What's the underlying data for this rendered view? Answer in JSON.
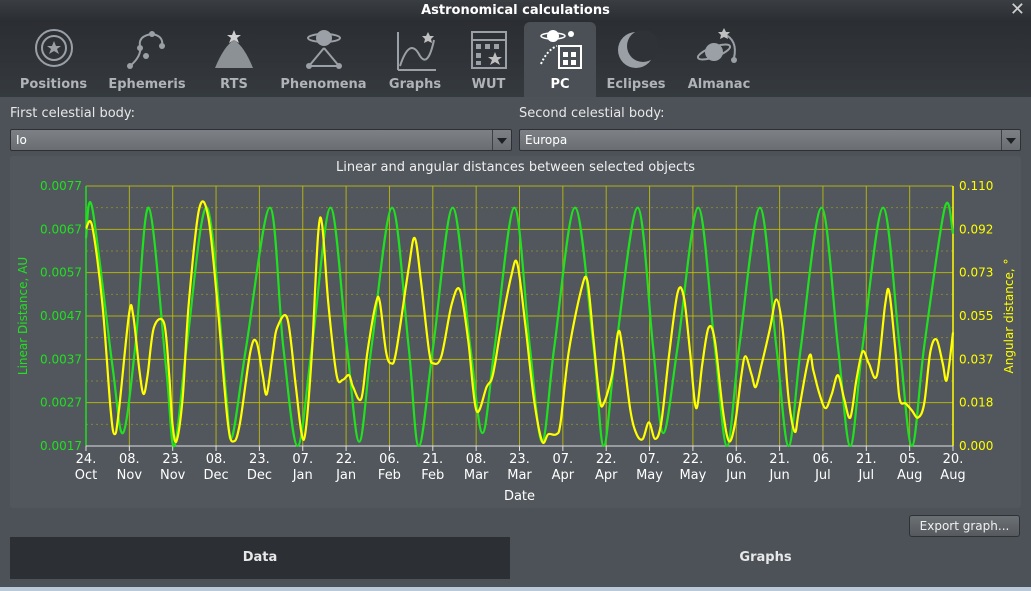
{
  "window": {
    "title": "Astronomical calculations",
    "close_glyph": "✕"
  },
  "tabs": [
    {
      "label": "Positions",
      "icon": "positions-icon"
    },
    {
      "label": "Ephemeris",
      "icon": "ephemeris-icon"
    },
    {
      "label": "RTS",
      "icon": "rts-icon"
    },
    {
      "label": "Phenomena",
      "icon": "phenomena-icon"
    },
    {
      "label": "Graphs",
      "icon": "graphs-icon"
    },
    {
      "label": "WUT",
      "icon": "wut-icon"
    },
    {
      "label": "PC",
      "icon": "pc-icon",
      "active": true
    },
    {
      "label": "Eclipses",
      "icon": "eclipses-icon"
    },
    {
      "label": "Almanac",
      "icon": "almanac-icon"
    }
  ],
  "form": {
    "first_label": "First celestial body:",
    "first_value": "Io",
    "second_label": "Second celestial body:",
    "second_value": "Europa"
  },
  "colors": {
    "linear": "#20e020",
    "angular": "#ffff00",
    "grid": "#c8c800",
    "grid_minor": "#8a8a30",
    "panel": "#52575d"
  },
  "chart_data": {
    "type": "line",
    "title": "Linear and angular distances between selected objects",
    "xlabel": "Date",
    "ylabel_left": "Linear Distance, AU",
    "ylabel_right": "Angular distance, °",
    "yticks_left": [
      "0.0017",
      "0.0027",
      "0.0037",
      "0.0047",
      "0.0057",
      "0.0067",
      "0.0077"
    ],
    "yticks_right": [
      "0.000",
      "0.018",
      "0.037",
      "0.055",
      "0.073",
      "0.092",
      "0.110"
    ],
    "ylim_left": [
      0.0017,
      0.0077
    ],
    "ylim_right": [
      0.0,
      0.11
    ],
    "xticks": [
      [
        "24.",
        "Oct"
      ],
      [
        "08.",
        "Nov"
      ],
      [
        "23.",
        "Nov"
      ],
      [
        "08.",
        "Dec"
      ],
      [
        "23.",
        "Dec"
      ],
      [
        "07.",
        "Jan"
      ],
      [
        "22.",
        "Jan"
      ],
      [
        "06.",
        "Feb"
      ],
      [
        "21.",
        "Feb"
      ],
      [
        "08.",
        "Mar"
      ],
      [
        "23.",
        "Mar"
      ],
      [
        "07.",
        "Apr"
      ],
      [
        "22.",
        "Apr"
      ],
      [
        "07.",
        "May"
      ],
      [
        "22.",
        "May"
      ],
      [
        "06.",
        "Jun"
      ],
      [
        "21.",
        "Jun"
      ],
      [
        "06.",
        "Jul"
      ],
      [
        "21.",
        "Jul"
      ],
      [
        "05.",
        "Aug"
      ],
      [
        "20.",
        "Aug"
      ]
    ],
    "grid": true,
    "series": [
      {
        "name": "Linear Distance, AU",
        "axis": "left",
        "points": [
          [
            0,
            0.0065
          ],
          [
            0.3,
            0.0072
          ],
          [
            1.3,
            0.0035
          ],
          [
            1.8,
            0.002
          ],
          [
            2.4,
            0.004
          ],
          [
            3.05,
            0.0072
          ],
          [
            3.9,
            0.0035
          ],
          [
            4.3,
            0.0017
          ],
          [
            4.9,
            0.004
          ],
          [
            5.9,
            0.0072
          ],
          [
            6.8,
            0.003
          ],
          [
            7.1,
            0.0019
          ],
          [
            7.8,
            0.004
          ],
          [
            8.95,
            0.0072
          ],
          [
            9.6,
            0.004
          ],
          [
            10.3,
            0.0017
          ],
          [
            11.0,
            0.004
          ],
          [
            11.9,
            0.0072
          ],
          [
            12.7,
            0.004
          ],
          [
            13.3,
            0.0018
          ],
          [
            13.9,
            0.004
          ],
          [
            14.9,
            0.0072
          ],
          [
            15.7,
            0.004
          ],
          [
            16.2,
            0.0017
          ],
          [
            16.9,
            0.004
          ],
          [
            17.85,
            0.0072
          ],
          [
            18.7,
            0.004
          ],
          [
            19.3,
            0.002
          ],
          [
            19.9,
            0.004
          ],
          [
            20.85,
            0.0072
          ],
          [
            21.6,
            0.004
          ],
          [
            22.2,
            0.0018
          ],
          [
            22.8,
            0.004
          ],
          [
            23.8,
            0.0072
          ],
          [
            24.7,
            0.004
          ],
          [
            25.2,
            0.0017
          ],
          [
            25.8,
            0.004
          ],
          [
            26.85,
            0.0072
          ],
          [
            27.6,
            0.004
          ],
          [
            28.1,
            0.002
          ],
          [
            28.8,
            0.004
          ],
          [
            29.8,
            0.0072
          ],
          [
            30.6,
            0.004
          ],
          [
            31.2,
            0.0017
          ],
          [
            31.8,
            0.004
          ],
          [
            32.8,
            0.0072
          ],
          [
            33.6,
            0.004
          ],
          [
            34.2,
            0.0017
          ],
          [
            34.8,
            0.004
          ],
          [
            35.8,
            0.0072
          ],
          [
            36.6,
            0.004
          ],
          [
            37.2,
            0.0017
          ],
          [
            37.8,
            0.004
          ],
          [
            38.8,
            0.0072
          ],
          [
            39.6,
            0.004
          ],
          [
            40.2,
            0.0017
          ],
          [
            40.8,
            0.004
          ],
          [
            41.8,
            0.0072
          ],
          [
            42.2,
            0.0066
          ]
        ]
      },
      {
        "name": "Angular distance, °",
        "axis": "right",
        "points": [
          [
            0,
            0.092
          ],
          [
            0.3,
            0.093
          ],
          [
            0.8,
            0.06
          ],
          [
            1.2,
            0.015
          ],
          [
            1.4,
            0.005
          ],
          [
            1.6,
            0.015
          ],
          [
            2.1,
            0.056
          ],
          [
            2.3,
            0.055
          ],
          [
            2.6,
            0.032
          ],
          [
            2.8,
            0.022
          ],
          [
            3.0,
            0.03
          ],
          [
            3.3,
            0.05
          ],
          [
            3.8,
            0.052
          ],
          [
            4.05,
            0.03
          ],
          [
            4.2,
            0.01
          ],
          [
            4.4,
            0.002
          ],
          [
            4.7,
            0.02
          ],
          [
            5.0,
            0.06
          ],
          [
            5.5,
            0.1
          ],
          [
            5.95,
            0.097
          ],
          [
            6.4,
            0.06
          ],
          [
            6.9,
            0.01
          ],
          [
            7.2,
            0.002
          ],
          [
            7.5,
            0.01
          ],
          [
            8.0,
            0.04
          ],
          [
            8.3,
            0.044
          ],
          [
            8.6,
            0.03
          ],
          [
            8.8,
            0.022
          ],
          [
            9.1,
            0.04
          ],
          [
            9.3,
            0.05
          ],
          [
            9.8,
            0.054
          ],
          [
            10.2,
            0.026
          ],
          [
            10.5,
            0.005
          ],
          [
            10.7,
            0.007
          ],
          [
            11.0,
            0.04
          ],
          [
            11.3,
            0.09
          ],
          [
            11.5,
            0.093
          ],
          [
            11.8,
            0.06
          ],
          [
            12.2,
            0.03
          ],
          [
            12.5,
            0.028
          ],
          [
            12.8,
            0.03
          ],
          [
            13.0,
            0.025
          ],
          [
            13.4,
            0.02
          ],
          [
            13.7,
            0.04
          ],
          [
            14.1,
            0.06
          ],
          [
            14.3,
            0.061
          ],
          [
            14.6,
            0.04
          ],
          [
            14.85,
            0.035
          ],
          [
            15.1,
            0.04
          ],
          [
            15.7,
            0.075
          ],
          [
            16.0,
            0.088
          ],
          [
            16.3,
            0.07
          ],
          [
            16.7,
            0.04
          ],
          [
            16.9,
            0.035
          ],
          [
            17.3,
            0.038
          ],
          [
            17.8,
            0.06
          ],
          [
            18.2,
            0.066
          ],
          [
            18.6,
            0.045
          ],
          [
            19.0,
            0.015
          ],
          [
            19.5,
            0.025
          ],
          [
            19.8,
            0.03
          ],
          [
            20.2,
            0.05
          ],
          [
            20.7,
            0.072
          ],
          [
            21.0,
            0.077
          ],
          [
            21.4,
            0.05
          ],
          [
            21.8,
            0.02
          ],
          [
            22.2,
            0.002
          ],
          [
            22.5,
            0.005
          ],
          [
            22.9,
            0.005
          ],
          [
            23.1,
            0.01
          ],
          [
            23.5,
            0.04
          ],
          [
            24.1,
            0.066
          ],
          [
            24.4,
            0.07
          ],
          [
            24.7,
            0.045
          ],
          [
            25.0,
            0.02
          ],
          [
            25.2,
            0.018
          ],
          [
            25.6,
            0.03
          ],
          [
            25.9,
            0.048
          ],
          [
            26.1,
            0.042
          ],
          [
            26.5,
            0.015
          ],
          [
            26.8,
            0.005
          ],
          [
            27.1,
            0.003
          ],
          [
            27.4,
            0.01
          ],
          [
            27.7,
            0.003
          ],
          [
            28.0,
            0.01
          ],
          [
            28.4,
            0.04
          ],
          [
            28.8,
            0.065
          ],
          [
            29.1,
            0.063
          ],
          [
            29.4,
            0.04
          ],
          [
            29.7,
            0.016
          ],
          [
            30.0,
            0.035
          ],
          [
            30.3,
            0.05
          ],
          [
            30.6,
            0.045
          ],
          [
            31.0,
            0.015
          ],
          [
            31.3,
            0.002
          ],
          [
            31.6,
            0.01
          ],
          [
            31.9,
            0.03
          ],
          [
            32.1,
            0.038
          ],
          [
            32.4,
            0.03
          ],
          [
            32.6,
            0.025
          ],
          [
            32.9,
            0.035
          ],
          [
            33.3,
            0.05
          ],
          [
            33.6,
            0.062
          ],
          [
            33.9,
            0.05
          ],
          [
            34.2,
            0.02
          ],
          [
            34.5,
            0.006
          ],
          [
            34.7,
            0.015
          ],
          [
            35.2,
            0.038
          ],
          [
            35.4,
            0.032
          ],
          [
            35.7,
            0.022
          ],
          [
            36.0,
            0.016
          ],
          [
            36.3,
            0.022
          ],
          [
            36.6,
            0.03
          ],
          [
            36.9,
            0.02
          ],
          [
            37.2,
            0.012
          ],
          [
            37.5,
            0.028
          ],
          [
            37.8,
            0.04
          ],
          [
            38.1,
            0.035
          ],
          [
            38.5,
            0.03
          ],
          [
            38.9,
            0.06
          ],
          [
            39.1,
            0.065
          ],
          [
            39.4,
            0.04
          ],
          [
            39.6,
            0.02
          ],
          [
            39.9,
            0.018
          ],
          [
            40.2,
            0.015
          ],
          [
            40.5,
            0.012
          ],
          [
            40.8,
            0.018
          ],
          [
            41.1,
            0.04
          ],
          [
            41.4,
            0.045
          ],
          [
            41.7,
            0.035
          ],
          [
            41.9,
            0.028
          ],
          [
            42.2,
            0.048
          ]
        ]
      }
    ]
  },
  "export_button": "Export graph...",
  "bottom_tabs": {
    "data": "Data",
    "graphs": "Graphs"
  }
}
